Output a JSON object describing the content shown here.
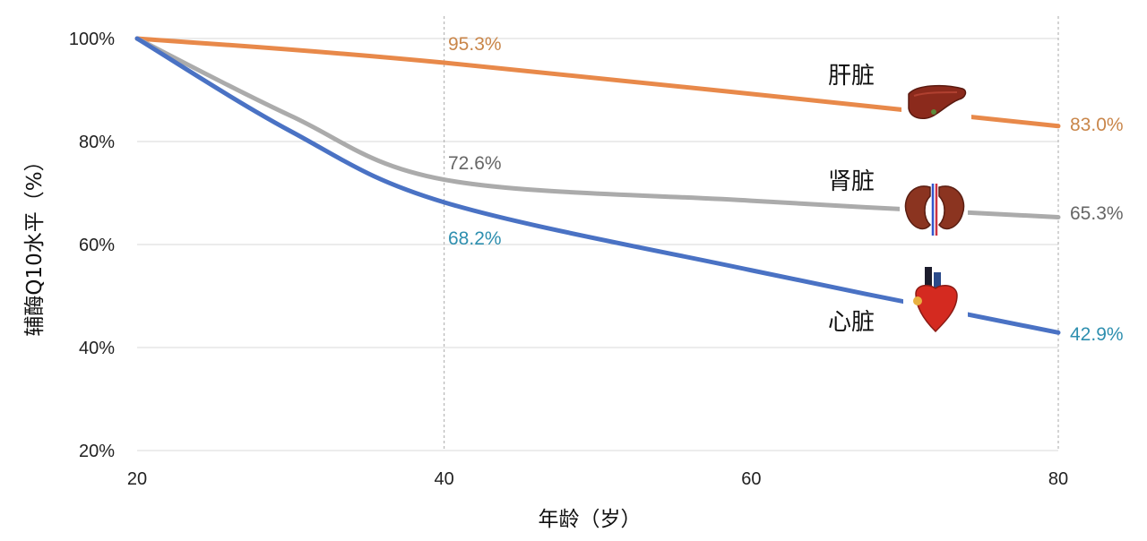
{
  "chart_data": {
    "type": "line",
    "xlabel": "年龄（岁）",
    "ylabel": "辅酶Q10水平（%）",
    "xlim": [
      20,
      80
    ],
    "ylim": [
      20,
      100
    ],
    "x_ticks": [
      "20",
      "40",
      "60",
      "80"
    ],
    "y_ticks": [
      "20%",
      "40%",
      "60%",
      "80%",
      "100%"
    ],
    "grid": "horizontal",
    "series": [
      {
        "name": "肝脏",
        "color": "#E8894A",
        "icon": "liver-icon",
        "x": [
          20,
          40,
          80
        ],
        "values": [
          100,
          95.3,
          83.0
        ],
        "labels": [
          "95.3%",
          "83.0%"
        ]
      },
      {
        "name": "肾脏",
        "color": "#ABABAB",
        "icon": "kidneys-icon",
        "x": [
          20,
          30,
          40,
          60,
          80
        ],
        "values": [
          100,
          85,
          72.6,
          68.5,
          65.3
        ],
        "labels": [
          "72.6%",
          "65.3%"
        ]
      },
      {
        "name": "心脏",
        "color": "#4A72C4",
        "icon": "heart-icon",
        "x": [
          20,
          30,
          40,
          60,
          80
        ],
        "values": [
          100,
          82,
          68.2,
          55,
          42.9
        ],
        "labels": [
          "68.2%",
          "42.9%"
        ]
      }
    ]
  },
  "label_colors": {
    "liver": "#C9864A",
    "kidney": "#666666",
    "heart": "#2E8FAF"
  }
}
